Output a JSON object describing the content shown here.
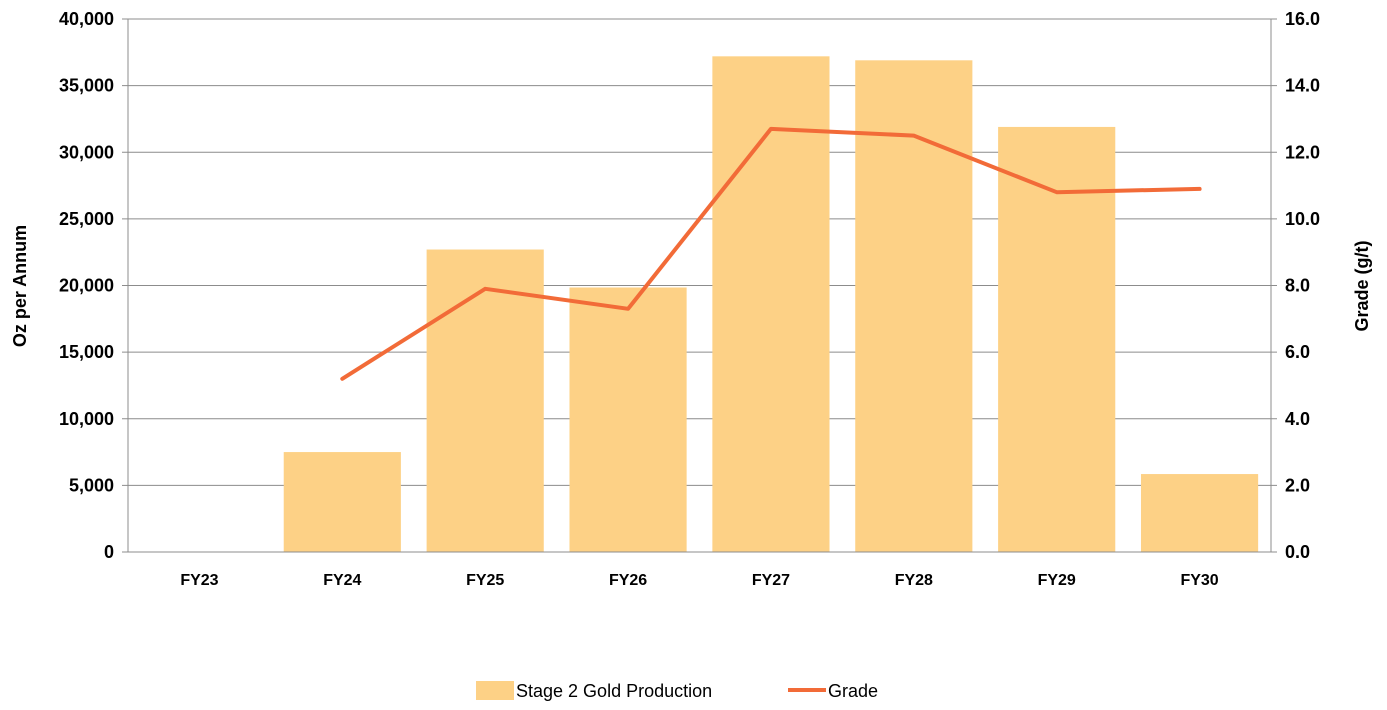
{
  "chart_data": {
    "type": "bar",
    "categories": [
      "FY23",
      "FY24",
      "FY25",
      "FY26",
      "FY27",
      "FY28",
      "FY29",
      "FY30"
    ],
    "series": [
      {
        "name": "Stage 2 Gold Production",
        "type": "bar",
        "axis": "left",
        "color": "#FDD186",
        "values": [
          0,
          7500,
          22700,
          19850,
          37200,
          36900,
          31900,
          5850
        ]
      },
      {
        "name": "Grade",
        "type": "line",
        "axis": "right",
        "color": "#F26B38",
        "values": [
          null,
          5.2,
          7.9,
          7.3,
          12.7,
          12.5,
          10.8,
          10.9
        ]
      }
    ],
    "ylabel": "Oz per Annum",
    "y2label": "Grade (g/t)",
    "ylim": [
      0,
      40000
    ],
    "y2lim": [
      0,
      16
    ],
    "yticks": [
      "0",
      "5,000",
      "10,000",
      "15,000",
      "20,000",
      "25,000",
      "30,000",
      "35,000",
      "40,000"
    ],
    "y2ticks": [
      "0.0",
      "2.0",
      "4.0",
      "6.0",
      "8.0",
      "10.0",
      "12.0",
      "14.0",
      "16.0"
    ],
    "grid": true,
    "legend_position": "bottom"
  }
}
